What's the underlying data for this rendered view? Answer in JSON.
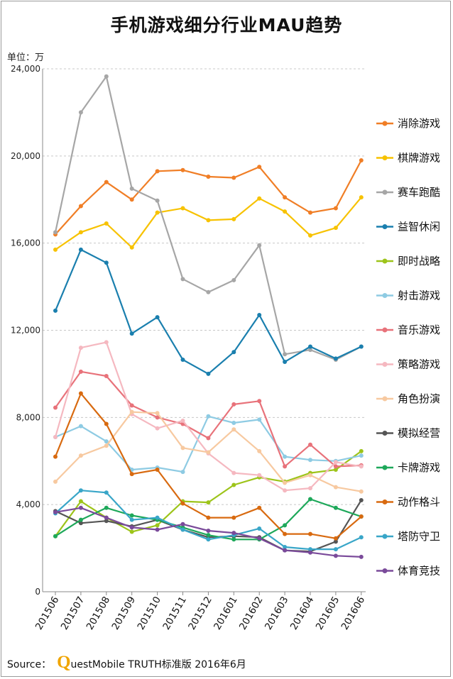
{
  "title": "手机游戏细分行业MAU趋势",
  "unit_label": "单位：万",
  "source": {
    "label": "Source：",
    "logo_letter": "Q",
    "text": "uestMobile TRUTH标准版 2016年6月"
  },
  "chart_data": {
    "type": "line",
    "title": "手机游戏细分行业MAU趋势",
    "ylabel": "单位：万",
    "xlabel": "",
    "ylim": [
      0,
      24000
    ],
    "yticks": [
      0,
      4000,
      8000,
      12000,
      16000,
      20000,
      24000
    ],
    "ytick_labels": [
      "0",
      "4,000",
      "8,000",
      "12,000",
      "16,000",
      "20,000",
      "24,000"
    ],
    "grid": true,
    "legend_position": "right",
    "categories": [
      "201506",
      "201507",
      "201508",
      "201509",
      "201510",
      "201511",
      "201512",
      "201601",
      "201602",
      "201603",
      "201604",
      "201605",
      "201606"
    ],
    "series": [
      {
        "name": "消除游戏",
        "color": "#f07e26",
        "values": [
          16400,
          17700,
          18800,
          18000,
          19300,
          19350,
          19050,
          19000,
          19500,
          18100,
          17400,
          17600,
          19800
        ]
      },
      {
        "name": "棋牌游戏",
        "color": "#f7c200",
        "values": [
          15700,
          16500,
          16900,
          15800,
          17400,
          17600,
          17050,
          17100,
          18050,
          17450,
          16350,
          16700,
          18100
        ]
      },
      {
        "name": "赛车跑酷",
        "color": "#a6a6a6",
        "values": [
          16500,
          22000,
          23650,
          18500,
          17950,
          14350,
          13750,
          14300,
          15900,
          10900,
          11100,
          10650,
          11250
        ]
      },
      {
        "name": "益智休闲",
        "color": "#1a7fae",
        "values": [
          12900,
          15700,
          15100,
          11850,
          12600,
          10650,
          10000,
          11000,
          12700,
          10550,
          11250,
          10700,
          11250
        ]
      },
      {
        "name": "即时战略",
        "color": "#9dc41a",
        "values": [
          2550,
          4150,
          3400,
          2750,
          3050,
          4150,
          4100,
          4900,
          5250,
          5050,
          5450,
          5600,
          6450
        ]
      },
      {
        "name": "射击游戏",
        "color": "#8ecbe3",
        "values": [
          7100,
          7600,
          6900,
          5600,
          5700,
          5500,
          8050,
          7750,
          7900,
          6200,
          6050,
          6000,
          6250
        ]
      },
      {
        "name": "音乐游戏",
        "color": "#e8727a",
        "values": [
          8450,
          10100,
          9900,
          8550,
          8000,
          7700,
          7050,
          8600,
          8750,
          5750,
          6750,
          5750,
          5800
        ]
      },
      {
        "name": "策略游戏",
        "color": "#f5b8c0",
        "values": [
          7100,
          11200,
          11450,
          8150,
          7500,
          7850,
          6350,
          5450,
          5350,
          4650,
          4750,
          5950,
          5750
        ]
      },
      {
        "name": "角色扮演",
        "color": "#f7c9a0",
        "values": [
          5050,
          6250,
          6700,
          8250,
          8200,
          6600,
          6400,
          7450,
          6450,
          5000,
          5350,
          4800,
          4600
        ]
      },
      {
        "name": "模拟经营",
        "color": "#555555",
        "values": [
          3700,
          3150,
          3250,
          3000,
          3300,
          2850,
          2500,
          2550,
          2500,
          1900,
          1850,
          2300,
          4200
        ]
      },
      {
        "name": "卡牌游戏",
        "color": "#1ea85a",
        "values": [
          2550,
          3300,
          3850,
          3500,
          3300,
          2950,
          2600,
          2400,
          2400,
          3050,
          4250,
          3850,
          3450
        ]
      },
      {
        "name": "动作格斗",
        "color": "#d86a10",
        "values": [
          6200,
          9100,
          7700,
          5400,
          5600,
          4050,
          3400,
          3400,
          3850,
          2650,
          2650,
          2450,
          3450
        ]
      },
      {
        "name": "塔防守卫",
        "color": "#39a6c8",
        "values": [
          3600,
          4650,
          4550,
          3300,
          3400,
          2850,
          2400,
          2600,
          2900,
          2050,
          1950,
          1950,
          2500
        ]
      },
      {
        "name": "体育竞技",
        "color": "#7a4a9a",
        "values": [
          3650,
          3850,
          3400,
          2950,
          2850,
          3100,
          2800,
          2700,
          2450,
          1900,
          1800,
          1650,
          1600
        ]
      }
    ]
  }
}
